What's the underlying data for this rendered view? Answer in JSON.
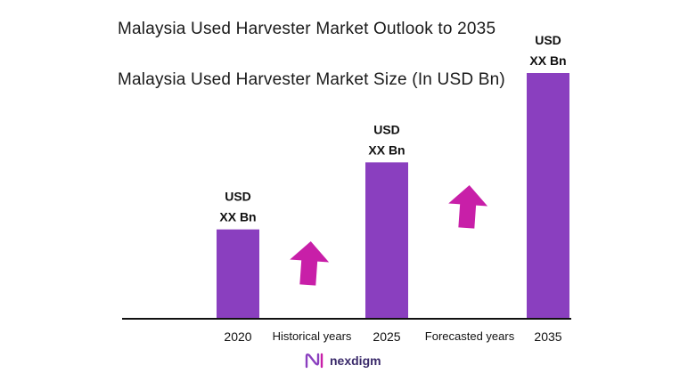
{
  "titles": {
    "outlook": "Malaysia Used Harvester Market Outlook to 2035",
    "size": "Malaysia Used Harvester Market Size (In USD Bn)"
  },
  "chart_data": {
    "type": "bar",
    "categories": [
      "2020",
      "2025",
      "2035"
    ],
    "values": [
      1.0,
      1.75,
      2.75
    ],
    "value_labels": [
      [
        "USD",
        "XX Bn"
      ],
      [
        "USD",
        "XX Bn"
      ],
      [
        "USD",
        "XX Bn"
      ]
    ],
    "ylim": [
      0,
      2.75
    ],
    "period_labels": [
      "Historical years",
      "Forecasted years"
    ],
    "bar_color": "#8a3fbf",
    "arrow_color": "#c81fa8",
    "grid": false
  },
  "brand": {
    "name": "nexdigm",
    "color": "#3a2a6a"
  }
}
